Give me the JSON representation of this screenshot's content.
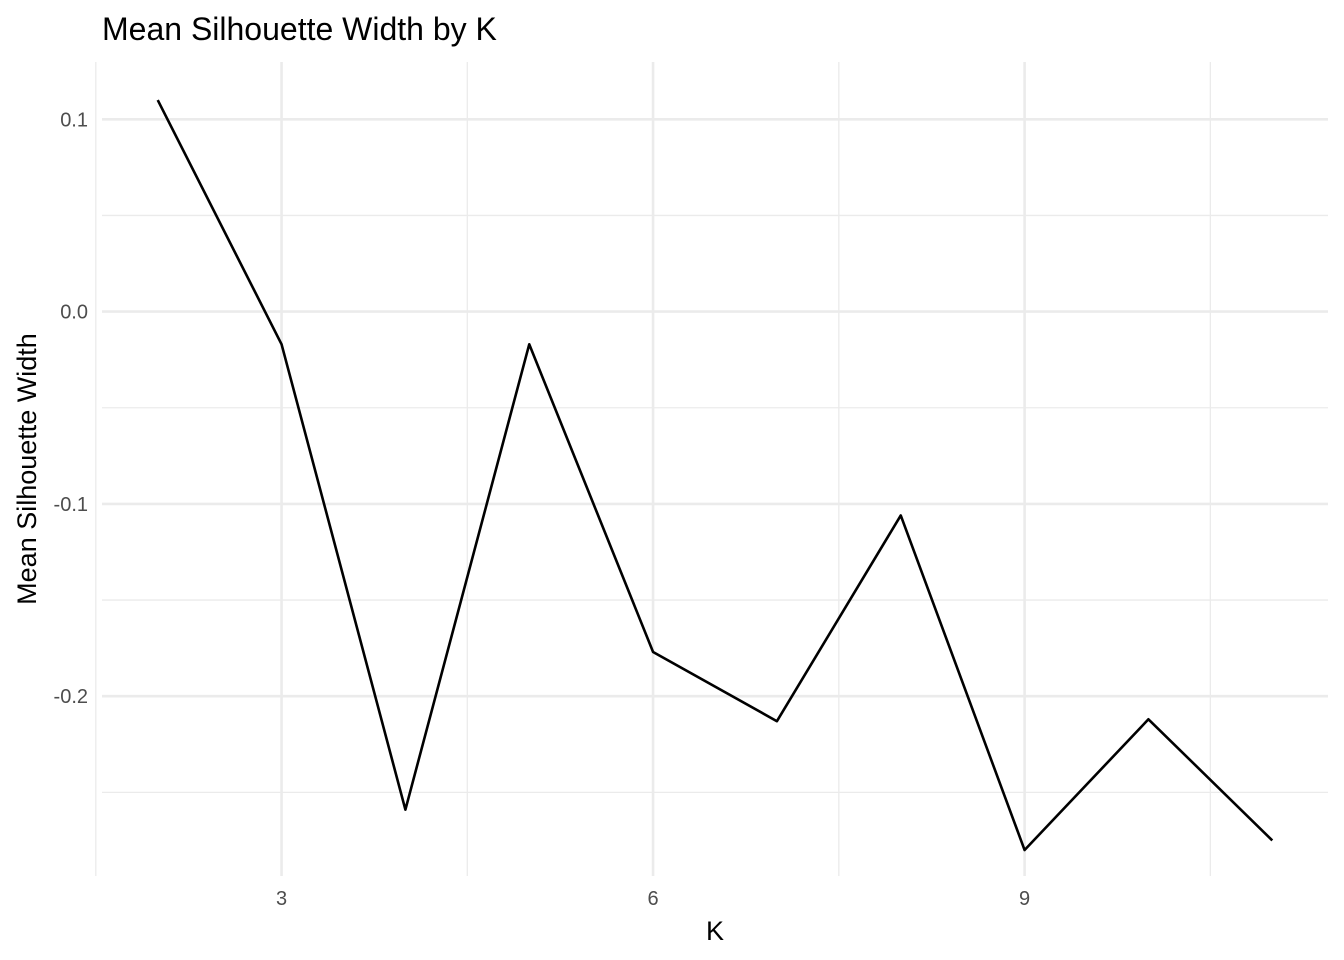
{
  "chart_data": {
    "type": "line",
    "title": "Mean Silhouette Width by K",
    "xlabel": "K",
    "ylabel": "Mean Silhouette Width",
    "x": [
      2,
      3,
      4,
      5,
      6,
      7,
      8,
      9,
      10,
      11
    ],
    "series": [
      {
        "values": [
          0.11,
          -0.017,
          -0.259,
          -0.017,
          -0.177,
          -0.213,
          -0.106,
          -0.28,
          -0.212,
          -0.275
        ],
        "color": "#000000"
      }
    ],
    "xlim": [
      1.55,
      11.45
    ],
    "ylim": [
      -0.2935,
      0.1298
    ],
    "x_ticks": [
      3,
      6,
      9
    ],
    "x_tick_labels": [
      "3",
      "6",
      "9"
    ],
    "x_minor_ticks": [
      1.5,
      4.5,
      7.5,
      10.5
    ],
    "y_ticks": [
      0.1,
      0.0,
      -0.1,
      -0.2
    ],
    "y_tick_labels": [
      "0.1",
      "0.0",
      "-0.1",
      "-0.2"
    ],
    "y_minor_ticks": [
      0.05,
      -0.05,
      -0.15,
      -0.25
    ],
    "grid": true,
    "legend": "none"
  }
}
